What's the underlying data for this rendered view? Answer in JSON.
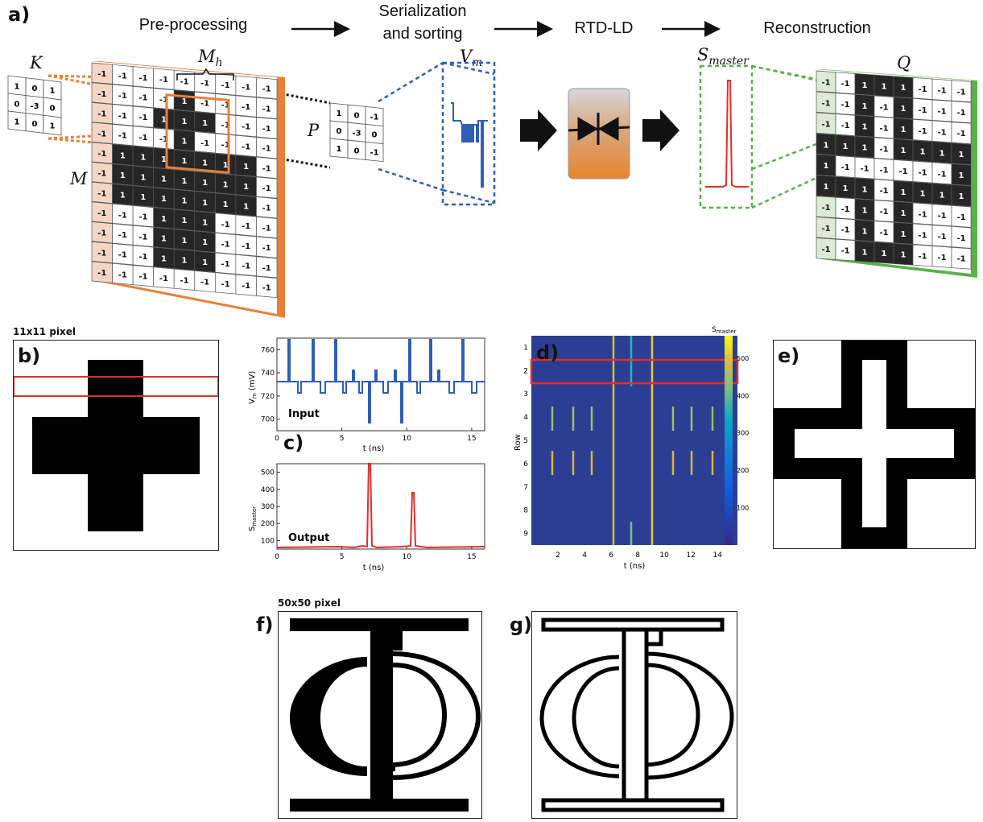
{
  "panel_a": {
    "label": "a)",
    "stages": [
      "Pre-processing",
      "Serialization\nand sorting",
      "RTD-LD",
      "Reconstruction"
    ],
    "symbols": {
      "K": "K",
      "M": "M",
      "Mh_base": "M",
      "Mh_sub": "h",
      "P": "P",
      "Vm_base": "V",
      "Vm_sub": "m",
      "Smaster_base": "S",
      "Smaster_sub": "master",
      "Q": "Q"
    },
    "kernel_K": [
      [
        "1",
        "0",
        "1"
      ],
      [
        "0",
        "-3",
        "0"
      ],
      [
        "1",
        "0",
        "1"
      ]
    ],
    "kernel_P": [
      [
        "1",
        "0",
        "-1"
      ],
      [
        "0",
        "-3",
        "0"
      ],
      [
        "1",
        "0",
        "-1"
      ]
    ],
    "grid_M": [
      [
        "-1",
        "-1",
        "-1",
        "-1",
        "-1",
        "-1",
        "-1",
        "-1",
        "-1"
      ],
      [
        "-1",
        "-1",
        "-1",
        "-1",
        "1",
        "-1",
        "-1",
        "-1",
        "-1"
      ],
      [
        "-1",
        "-1",
        "-1",
        "1",
        "1",
        "1",
        "-1",
        "-1",
        "-1"
      ],
      [
        "-1",
        "-1",
        "-1",
        "-1",
        "1",
        "-1",
        "-1",
        "-1",
        "-1"
      ],
      [
        "-1",
        "1",
        "1",
        "1",
        "1",
        "1",
        "1",
        "1",
        "-1"
      ],
      [
        "-1",
        "1",
        "1",
        "1",
        "1",
        "1",
        "1",
        "1",
        "-1"
      ],
      [
        "-1",
        "1",
        "1",
        "1",
        "1",
        "1",
        "1",
        "1",
        "-1"
      ],
      [
        "-1",
        "-1",
        "-1",
        "1",
        "1",
        "1",
        "-1",
        "-1",
        "-1"
      ],
      [
        "-1",
        "-1",
        "-1",
        "1",
        "1",
        "1",
        "-1",
        "-1",
        "-1"
      ],
      [
        "-1",
        "-1",
        "-1",
        "1",
        "1",
        "1",
        "-1",
        "-1",
        "-1"
      ],
      [
        "-1",
        "-1",
        "-1",
        "-1",
        "-1",
        "-1",
        "-1",
        "-1",
        "-1"
      ]
    ],
    "grid_Q": [
      [
        "-1",
        "-1",
        "1",
        "1",
        "1",
        "-1",
        "-1",
        "-1"
      ],
      [
        "-1",
        "-1",
        "1",
        "-1",
        "1",
        "-1",
        "-1",
        "-1"
      ],
      [
        "-1",
        "-1",
        "1",
        "-1",
        "1",
        "-1",
        "-1",
        "-1"
      ],
      [
        "1",
        "1",
        "1",
        "-1",
        "1",
        "1",
        "1",
        "1"
      ],
      [
        "1",
        "-1",
        "-1",
        "-1",
        "-1",
        "-1",
        "-1",
        "1"
      ],
      [
        "1",
        "1",
        "1",
        "-1",
        "1",
        "1",
        "1",
        "1"
      ],
      [
        "-1",
        "-1",
        "1",
        "-1",
        "1",
        "-1",
        "-1",
        "-1"
      ],
      [
        "-1",
        "-1",
        "1",
        "-1",
        "1",
        "-1",
        "-1",
        "-1"
      ],
      [
        "-1",
        "-1",
        "1",
        "1",
        "1",
        "-1",
        "-1",
        "-1"
      ]
    ]
  },
  "panel_b": {
    "label": "b)",
    "caption": "11x11 pixel"
  },
  "panel_c": {
    "label": "c)",
    "input_label": "Input",
    "output_label": "Output",
    "input_ylabel": "V",
    "input_ylabel_sub": "m",
    "input_ylabel_unit": " (mV)",
    "output_ylabel": "S",
    "output_ylabel_sub": "master",
    "xlabel": "t (ns)",
    "input_yticks": [
      "700",
      "720",
      "740",
      "760"
    ],
    "output_yticks": [
      "100",
      "200",
      "300",
      "400",
      "500"
    ],
    "xticks": [
      "0",
      "5",
      "10",
      "15"
    ]
  },
  "panel_d": {
    "label": "d)",
    "ylabel": "Row",
    "xlabel": "t (ns)",
    "colorbar_title": "S",
    "colorbar_title_sub": "master",
    "row_ticks": [
      "1",
      "2",
      "3",
      "4",
      "5",
      "6",
      "7",
      "8",
      "9"
    ],
    "xticks": [
      "2",
      "4",
      "6",
      "8",
      "10",
      "12",
      "14"
    ],
    "cbar_ticks": [
      "100",
      "200",
      "300",
      "400",
      "500"
    ]
  },
  "panel_e": {
    "label": "e)"
  },
  "panel_f": {
    "label": "f)",
    "caption": "50x50 pixel"
  },
  "panel_g": {
    "label": "g)"
  },
  "colors": {
    "orange": "#e8803a",
    "blue": "#2f5fb5",
    "green": "#5ab04a",
    "red": "#e0302a",
    "dark": "#262626"
  }
}
